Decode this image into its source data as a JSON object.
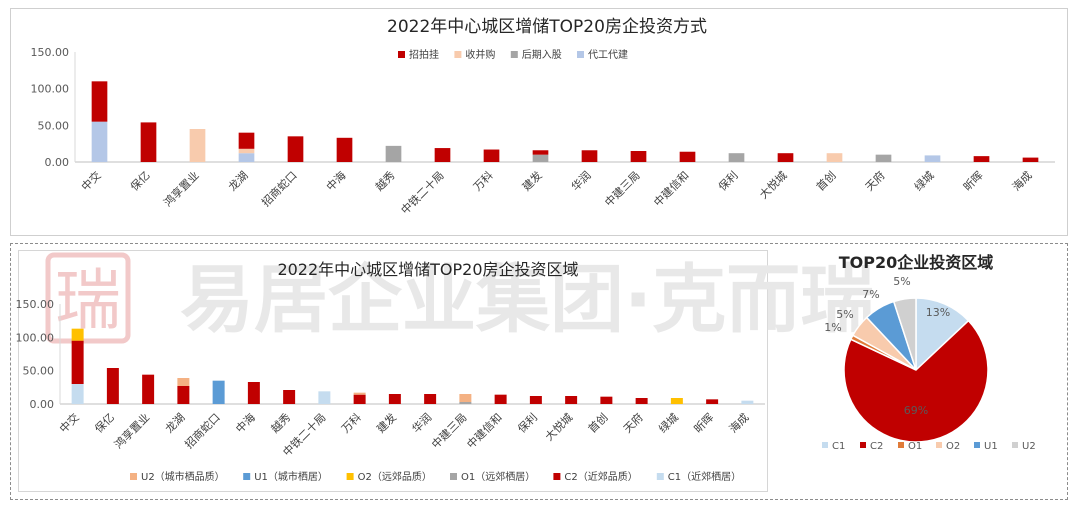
{
  "watermark": {
    "text": "易居企业集团·克而瑞",
    "logo": "瑞"
  },
  "chart_data": [
    {
      "type": "bar",
      "stacked": true,
      "title": "2022年中心城区增储TOP20房企投资方式",
      "categories": [
        "中交",
        "保亿",
        "鸿享置业",
        "龙湖",
        "招商蛇口",
        "中海",
        "越秀",
        "中铁二十局",
        "万科",
        "建发",
        "华润",
        "中建三局",
        "中建信和",
        "保利",
        "大悦城",
        "首创",
        "天府",
        "绿城",
        "昕晖",
        "海成"
      ],
      "ylim": [
        0,
        150
      ],
      "yticks": [
        "0.00",
        "50.00",
        "100.00",
        "150.00"
      ],
      "legend_position": "top",
      "grid": false,
      "series": [
        {
          "name": "代工代建",
          "color": "#b4c7e7",
          "values": [
            55,
            0,
            0,
            12,
            0,
            0,
            0,
            0,
            0,
            0,
            0,
            0,
            0,
            0,
            0,
            0,
            0,
            9,
            0,
            0
          ]
        },
        {
          "name": "后期入股",
          "color": "#a5a5a5",
          "values": [
            0,
            0,
            0,
            0,
            0,
            0,
            22,
            0,
            0,
            10,
            0,
            0,
            0,
            12,
            0,
            0,
            10,
            0,
            0,
            0
          ]
        },
        {
          "name": "收并购",
          "color": "#f8cbad",
          "values": [
            0,
            0,
            45,
            6,
            0,
            0,
            0,
            0,
            0,
            0,
            0,
            0,
            0,
            0,
            0,
            12,
            0,
            0,
            0,
            0
          ]
        },
        {
          "name": "招拍挂",
          "color": "#c00000",
          "values": [
            55,
            54,
            0,
            22,
            35,
            33,
            0,
            19,
            17,
            6,
            16,
            15,
            14,
            0,
            12,
            0,
            0,
            0,
            8,
            6
          ]
        }
      ],
      "legend_order": [
        "招拍挂",
        "收并购",
        "后期入股",
        "代工代建"
      ]
    },
    {
      "type": "bar",
      "stacked": true,
      "title": "2022年中心城区增储TOP20房企投资区域",
      "categories": [
        "中交",
        "保亿",
        "鸿享置业",
        "龙湖",
        "招商蛇口",
        "中海",
        "越秀",
        "中铁二十局",
        "万科",
        "建发",
        "华润",
        "中建三局",
        "中建信和",
        "保利",
        "大悦城",
        "首创",
        "天府",
        "绿城",
        "昕晖",
        "海成"
      ],
      "ylim": [
        0,
        150
      ],
      "yticks": [
        "0.00",
        "50.00",
        "100.00",
        "150.00"
      ],
      "legend_position": "bottom",
      "grid": false,
      "series": [
        {
          "name": "C1（近郊栖居）",
          "color": "#c5dcef",
          "values": [
            30,
            0,
            0,
            0,
            0,
            0,
            0,
            19,
            0,
            0,
            0,
            0,
            0,
            0,
            0,
            0,
            0,
            0,
            0,
            5
          ]
        },
        {
          "name": "C2（近郊品质）",
          "color": "#c00000",
          "values": [
            65,
            54,
            44,
            27,
            0,
            33,
            21,
            0,
            14,
            15,
            15,
            0,
            14,
            12,
            12,
            11,
            9,
            0,
            7,
            0
          ]
        },
        {
          "name": "O1（远郊栖居）",
          "color": "#a5a5a5",
          "values": [
            0,
            0,
            0,
            0,
            0,
            0,
            0,
            0,
            0,
            0,
            0,
            3,
            0,
            0,
            0,
            0,
            0,
            0,
            0,
            0
          ]
        },
        {
          "name": "O2（远郊品质）",
          "color": "#ffc000",
          "values": [
            18,
            0,
            0,
            0,
            0,
            0,
            0,
            0,
            0,
            0,
            0,
            0,
            0,
            0,
            0,
            0,
            0,
            9,
            0,
            0
          ]
        },
        {
          "name": "U1（城市栖居）",
          "color": "#5b9bd5",
          "values": [
            0,
            0,
            0,
            0,
            35,
            0,
            0,
            0,
            0,
            0,
            0,
            0,
            0,
            0,
            0,
            0,
            0,
            0,
            0,
            0
          ]
        },
        {
          "name": "U2（城市栖品质）",
          "color": "#f4b183",
          "values": [
            0,
            0,
            0,
            12,
            0,
            0,
            0,
            0,
            3,
            0,
            0,
            12,
            0,
            0,
            0,
            0,
            0,
            0,
            0,
            0
          ]
        }
      ],
      "legend_order": [
        "U2（城市栖品质）",
        "U1（城市栖居）",
        "O2（远郊品质）",
        "O1（远郊栖居）",
        "C2（近郊品质）",
        "C1（近郊栖居）"
      ]
    },
    {
      "type": "pie",
      "title": "TOP20企业投资区域",
      "legend_position": "bottom",
      "slices": [
        {
          "label": "C1",
          "value": 13,
          "text": "13%",
          "color": "#c5dcef"
        },
        {
          "label": "C2",
          "value": 69,
          "text": "69%",
          "color": "#c00000"
        },
        {
          "label": "O1",
          "value": 1,
          "text": "1%",
          "color": "#e07b39"
        },
        {
          "label": "O2",
          "value": 5,
          "text": "5%",
          "color": "#f8cbad"
        },
        {
          "label": "U1",
          "value": 7,
          "text": "7%",
          "color": "#5b9bd5"
        },
        {
          "label": "U2",
          "value": 5,
          "text": "5%",
          "color": "#d0d0d0"
        }
      ]
    }
  ]
}
